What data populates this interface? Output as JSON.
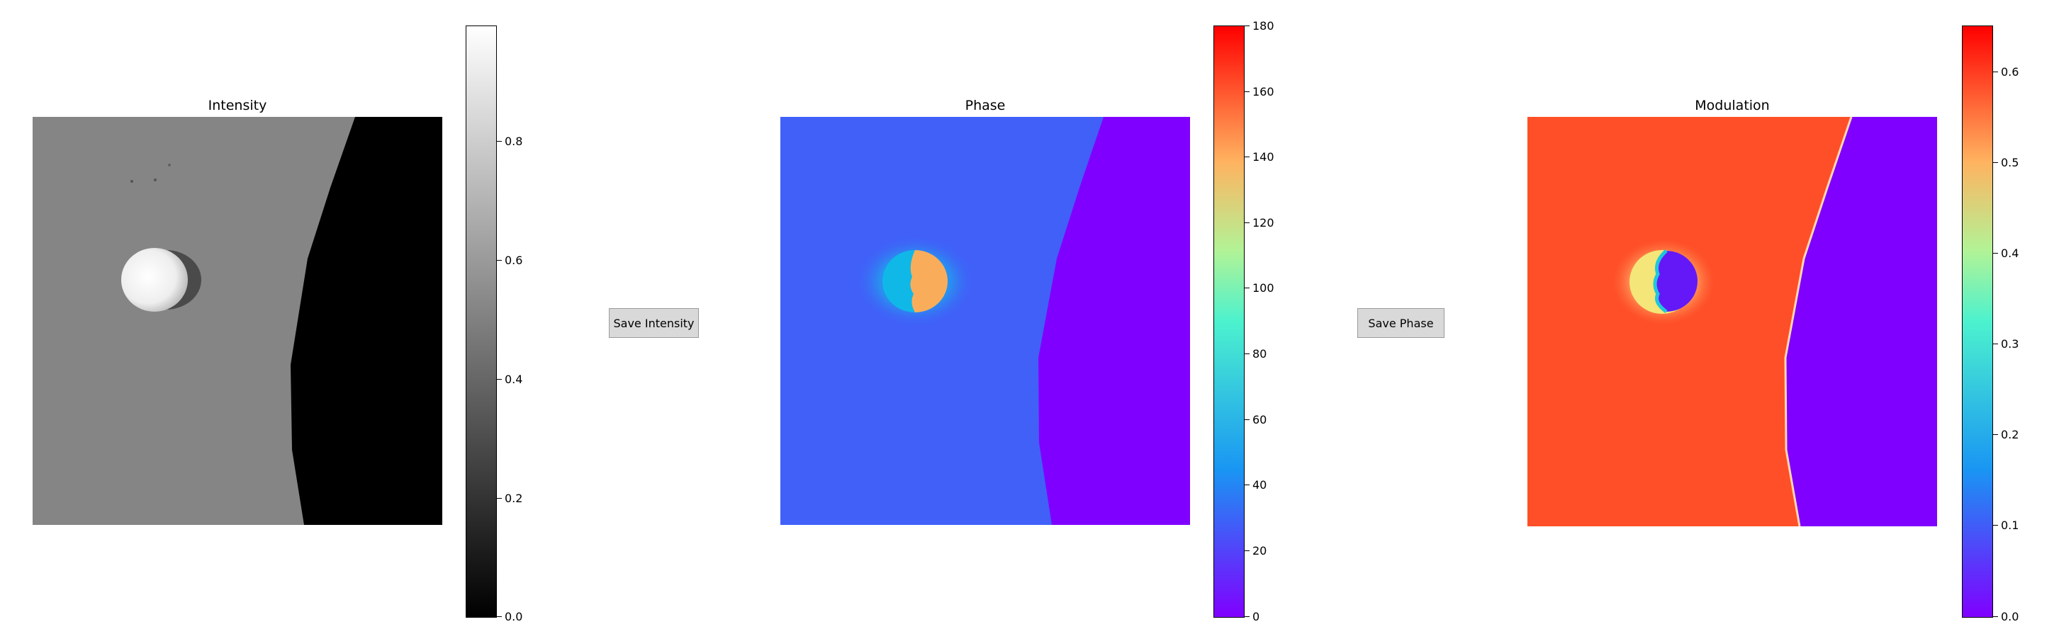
{
  "panels": [
    {
      "title": "Intensity",
      "colormap": "gray",
      "colorbar_ticks": [
        "0.0",
        "0.2",
        "0.4",
        "0.6",
        "0.8"
      ]
    },
    {
      "title": "Phase",
      "colormap": "rainbow",
      "colorbar_ticks": [
        "0",
        "20",
        "40",
        "60",
        "80",
        "100",
        "120",
        "140",
        "160",
        "180"
      ]
    },
    {
      "title": "Modulation",
      "colormap": "rainbow",
      "colorbar_ticks": [
        "0.0",
        "0.1",
        "0.2",
        "0.3",
        "0.4",
        "0.5",
        "0.6"
      ]
    }
  ],
  "buttons": {
    "save_intensity": "Save Intensity",
    "save_phase": "Save Phase"
  },
  "colorbar_ranges": {
    "intensity": [
      0,
      1.0
    ],
    "phase": [
      0,
      180
    ],
    "modulation": [
      0,
      0.65
    ]
  },
  "colors": {
    "button_bg": "#d9d9d9",
    "phase_background": "#4060f8",
    "phase_edge_region": "#8000ff",
    "modulation_background": "#ff4f28",
    "modulation_edge_region": "#8000ff"
  }
}
